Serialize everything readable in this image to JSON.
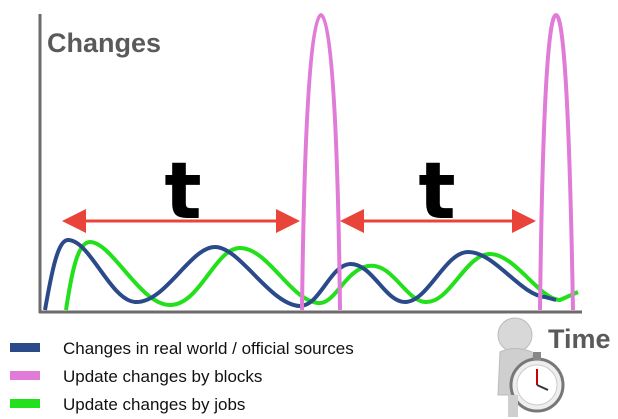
{
  "axes": {
    "y_label": "Changes",
    "x_label": "Time"
  },
  "intervals": [
    {
      "label": "t"
    },
    {
      "label": "t"
    }
  ],
  "legend": [
    {
      "label": "Changes in real world / official sources"
    },
    {
      "label": "Update changes by blocks"
    },
    {
      "label": "Update changes by jobs"
    }
  ]
}
